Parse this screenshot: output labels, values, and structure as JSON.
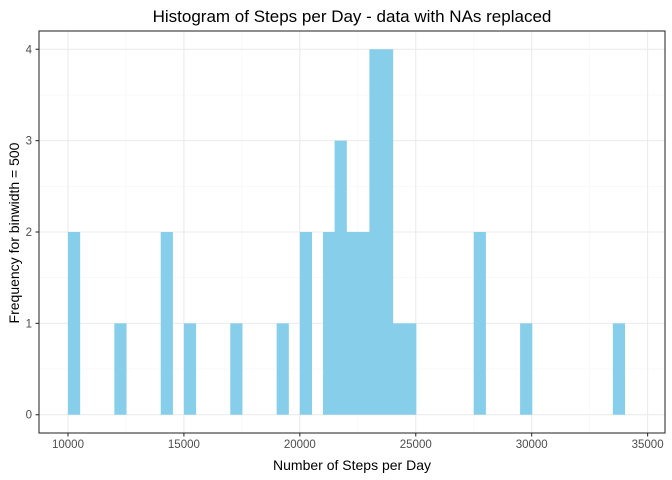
{
  "colors": {
    "bar": "#87CEEB",
    "grid_major": "#EBEBEB",
    "grid_minor": "#F5F5F5",
    "panel_border": "#333333",
    "tick_text": "#4D4D4D"
  },
  "chart_data": {
    "type": "bar",
    "title": "Histogram of Steps per Day - data with NAs replaced",
    "xlabel": "Number of Steps per Day",
    "ylabel": "Frequency for binwidth = 500",
    "binwidth": 500,
    "xlim": [
      8750,
      35750
    ],
    "ylim": [
      -0.2,
      4.2
    ],
    "grid": true,
    "x_ticks": [
      10000,
      15000,
      20000,
      25000,
      30000,
      35000
    ],
    "x_tick_labels": [
      "10000",
      "15000",
      "20000",
      "25000",
      "30000",
      "35000"
    ],
    "y_ticks": [
      0,
      1,
      2,
      3,
      4
    ],
    "y_tick_labels": [
      "0",
      "1",
      "2",
      "3",
      "4"
    ],
    "bins": [
      {
        "x": 10250,
        "count": 2
      },
      {
        "x": 12250,
        "count": 1
      },
      {
        "x": 14250,
        "count": 2
      },
      {
        "x": 15250,
        "count": 1
      },
      {
        "x": 17250,
        "count": 1
      },
      {
        "x": 19250,
        "count": 1
      },
      {
        "x": 20250,
        "count": 2
      },
      {
        "x": 21250,
        "count": 2
      },
      {
        "x": 21750,
        "count": 3
      },
      {
        "x": 22250,
        "count": 2
      },
      {
        "x": 22750,
        "count": 2
      },
      {
        "x": 23250,
        "count": 4
      },
      {
        "x": 23750,
        "count": 4
      },
      {
        "x": 24250,
        "count": 1
      },
      {
        "x": 24750,
        "count": 1
      },
      {
        "x": 27750,
        "count": 2
      },
      {
        "x": 29750,
        "count": 1
      },
      {
        "x": 33750,
        "count": 1
      }
    ]
  }
}
